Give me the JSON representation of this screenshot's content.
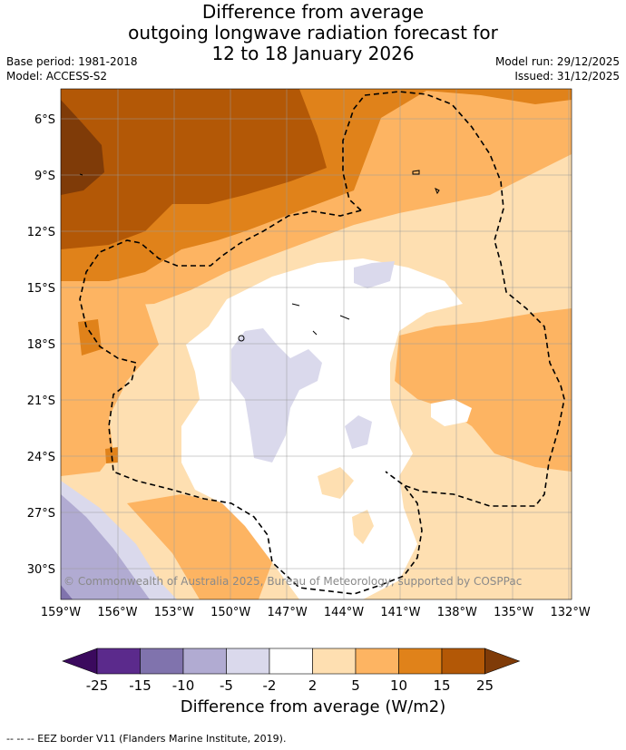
{
  "title": {
    "line1": "Difference from average",
    "line2": "outgoing longwave radiation forecast for",
    "line3": "12 to 18 January 2026"
  },
  "meta": {
    "base_period": "Base period: 1981-2018",
    "model": "Model: ACCESS-S2",
    "model_run": "Model run: 29/12/2025",
    "issued": "Issued: 31/12/2025"
  },
  "map": {
    "lat_labels": [
      "6°S",
      "9°S",
      "12°S",
      "15°S",
      "18°S",
      "21°S",
      "24°S",
      "27°S",
      "30°S"
    ],
    "lon_labels": [
      "159°W",
      "156°W",
      "153°W",
      "150°W",
      "147°W",
      "144°W",
      "141°W",
      "138°W",
      "135°W",
      "132°W"
    ],
    "copyright": "© Commonwealth of Australia 2025, Bureau of Meteorology, supported by COSPPac"
  },
  "colorbar": {
    "ticks": [
      "-25",
      "-15",
      "-10",
      "-5",
      "-2",
      "2",
      "5",
      "10",
      "15",
      "25"
    ],
    "colors": [
      "#3b0a5e",
      "#5b2a8c",
      "#8073ad",
      "#b1abd2",
      "#dad9ec",
      "#ffffff",
      "#fedfb1",
      "#fdb462",
      "#e0821a",
      "#b35806",
      "#7f3b08"
    ],
    "label": "Difference from average (W/m2)"
  },
  "footnote": "--  --  -- EEZ border V11 (Flanders Marine Institute, 2019)."
}
